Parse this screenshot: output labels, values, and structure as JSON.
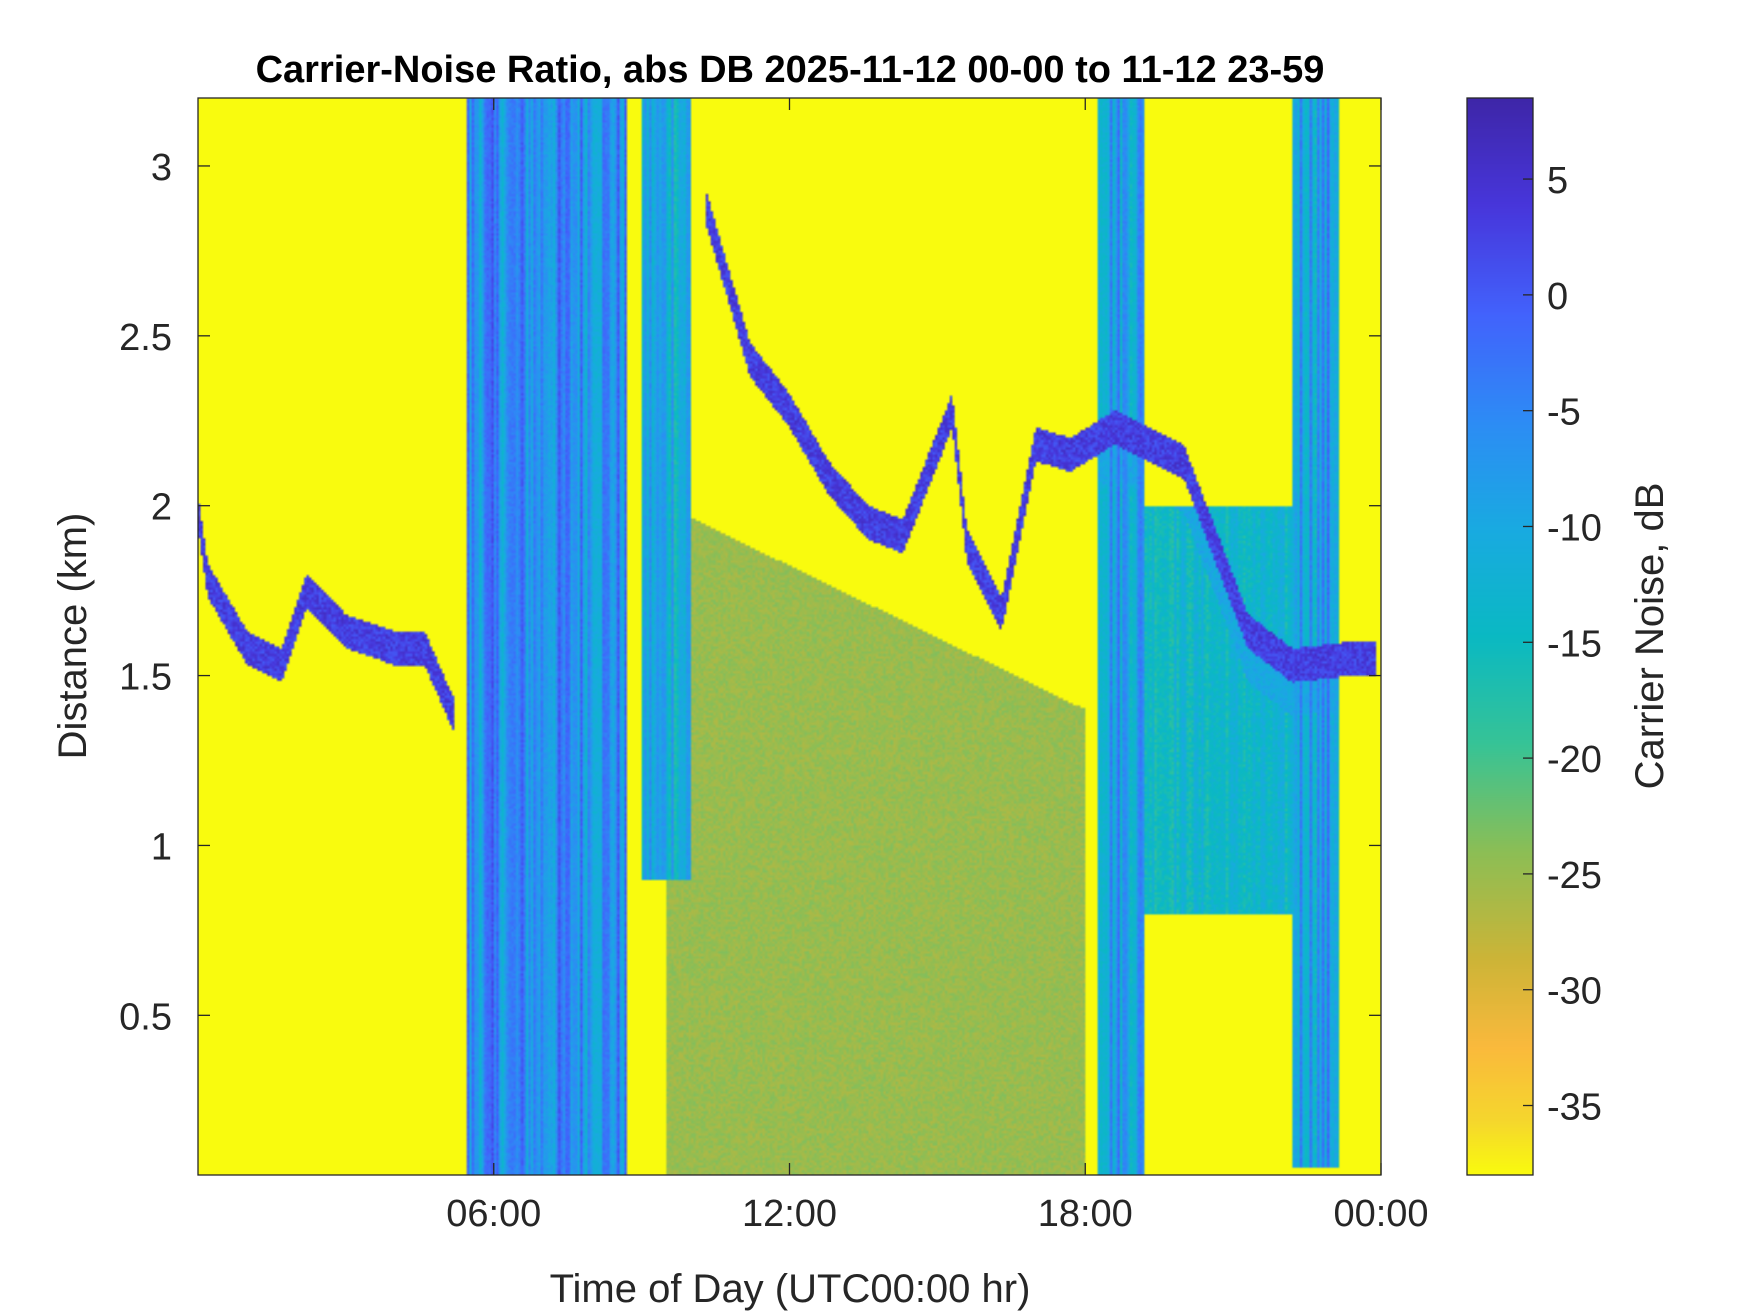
{
  "chart_data": {
    "type": "heatmap",
    "title": "Carrier-Noise Ratio, abs DB 2025-11-12 00-00 to 11-12 23-59",
    "xlabel": "Time of Day (UTC00:00 hr)",
    "ylabel": "Distance (km)",
    "colorbar_label": "Carrier Noise, dB",
    "x_range_hours": [
      0,
      24
    ],
    "y_range_km": [
      0.03,
      3.2
    ],
    "color_range_db": [
      -38,
      8.5
    ],
    "colormap": "parula (reversed: yellow = low, dark blue = high)",
    "x_ticks": [
      {
        "value": 6,
        "label": "06:00"
      },
      {
        "value": 12,
        "label": "12:00"
      },
      {
        "value": 18,
        "label": "18:00"
      },
      {
        "value": 24,
        "label": "00:00"
      }
    ],
    "y_ticks": [
      {
        "value": 0.5,
        "label": "0.5"
      },
      {
        "value": 1,
        "label": "1"
      },
      {
        "value": 1.5,
        "label": "1.5"
      },
      {
        "value": 2,
        "label": "2"
      },
      {
        "value": 2.5,
        "label": "2.5"
      },
      {
        "value": 3,
        "label": "3"
      }
    ],
    "colorbar_ticks": [
      {
        "value": 5,
        "label": "5"
      },
      {
        "value": 0,
        "label": "0"
      },
      {
        "value": -5,
        "label": "-5"
      },
      {
        "value": -10,
        "label": "-10"
      },
      {
        "value": -15,
        "label": "-15"
      },
      {
        "value": -20,
        "label": "-20"
      },
      {
        "value": -25,
        "label": "-25"
      },
      {
        "value": -30,
        "label": "-30"
      },
      {
        "value": -35,
        "label": "-35"
      }
    ],
    "background_level_db": -30,
    "features": {
      "blue_columns": [
        {
          "t0": 5.45,
          "t1": 8.7,
          "db": -6,
          "top_km": 3.2,
          "bottom_km": 0.03
        },
        {
          "t0": 9.0,
          "t1": 10.0,
          "db": -10,
          "top_km": 3.2,
          "bottom_km": 0.9
        },
        {
          "t0": 18.25,
          "t1": 19.2,
          "db": -8,
          "top_km": 3.2,
          "bottom_km": 0.03
        },
        {
          "t0": 22.2,
          "t1": 23.15,
          "db": -8,
          "top_km": 3.2,
          "bottom_km": 0.05
        }
      ],
      "layer_base_points": [
        {
          "t": 0.0,
          "km": 1.95
        },
        {
          "t": 0.2,
          "km": 1.75
        },
        {
          "t": 1.0,
          "km": 1.55
        },
        {
          "t": 1.7,
          "km": 1.5
        },
        {
          "t": 2.2,
          "km": 1.72
        },
        {
          "t": 3.0,
          "km": 1.6
        },
        {
          "t": 4.0,
          "km": 1.55
        },
        {
          "t": 4.6,
          "km": 1.55
        },
        {
          "t": 5.2,
          "km": 1.35
        },
        {
          "t": 10.3,
          "km": 2.85
        },
        {
          "t": 11.2,
          "km": 2.4
        },
        {
          "t": 12.0,
          "km": 2.25
        },
        {
          "t": 12.8,
          "km": 2.05
        },
        {
          "t": 13.6,
          "km": 1.92
        },
        {
          "t": 14.3,
          "km": 1.88
        },
        {
          "t": 15.3,
          "km": 2.25
        },
        {
          "t": 15.6,
          "km": 1.85
        },
        {
          "t": 16.3,
          "km": 1.65
        },
        {
          "t": 17.0,
          "km": 2.15
        },
        {
          "t": 17.7,
          "km": 2.12
        },
        {
          "t": 18.6,
          "km": 2.2
        },
        {
          "t": 20.0,
          "km": 2.1
        },
        {
          "t": 21.3,
          "km": 1.6
        },
        {
          "t": 22.2,
          "km": 1.5
        },
        {
          "t": 23.4,
          "km": 1.52
        },
        {
          "t": 23.9,
          "km": 1.52
        }
      ],
      "green_region": {
        "t0": 9.5,
        "t1": 18.0,
        "db": -25,
        "top_km_start": 2.0,
        "top_km_end": 1.4
      },
      "cyan_region": {
        "t0": 19.2,
        "t1": 22.2,
        "db": -14,
        "top_km": 2.0,
        "bottom_km": 0.8
      }
    }
  }
}
